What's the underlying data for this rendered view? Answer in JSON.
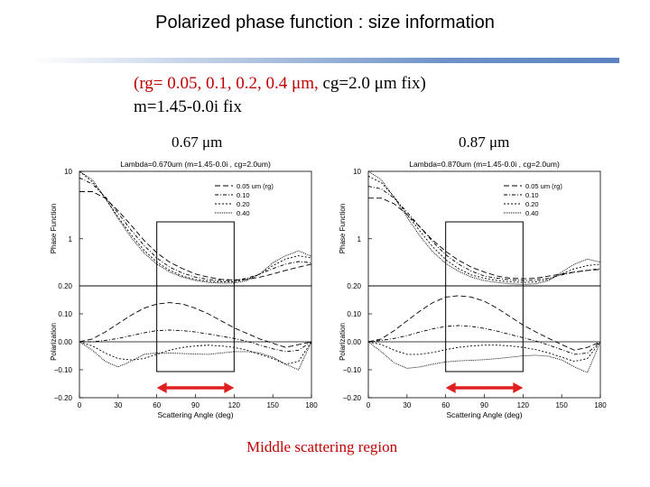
{
  "slide": {
    "title": "Polarized phase function : size information",
    "subtitle_line1_red": "(rg= 0.05, 0.1, 0.2, 0.4 μm,",
    "subtitle_line1_black": " cg=2.0 μm fix)",
    "subtitle_line2": "m=1.45-0.0i fix",
    "wavelength_left": "0.67 μm",
    "wavelength_right": "0.87 μm",
    "footer": "Middle scattering region",
    "accent_color": "#5b83c0",
    "arrow_color": "#e02020"
  },
  "chart_data": [
    {
      "type": "line",
      "title": "Lambda=0.670um (m=1.45-0.0i , cg=2.0um)",
      "xlabel": "Scattering Angle (deg)",
      "xlim": [
        0,
        180
      ],
      "xticks": [
        "0",
        "30",
        "60",
        "90",
        "120",
        "150",
        "180"
      ],
      "legend_title": "(rg)",
      "legend_position": "top-right",
      "highlight_x": [
        60,
        120
      ],
      "panels": [
        {
          "name": "phase",
          "ylabel": "Phase Function",
          "scale": "log",
          "ylim": [
            0.2,
            10
          ],
          "yticks": [
            "10",
            "1",
            "0.20"
          ],
          "series": [
            {
              "name": "0.05 um",
              "x": [
                0,
                10,
                20,
                30,
                40,
                50,
                60,
                70,
                80,
                90,
                100,
                110,
                120,
                130,
                140,
                150,
                160,
                170,
                180
              ],
              "values": [
                5.0,
                5.0,
                4.0,
                2.6,
                1.6,
                0.95,
                0.62,
                0.45,
                0.36,
                0.3,
                0.27,
                0.25,
                0.245,
                0.25,
                0.27,
                0.3,
                0.34,
                0.38,
                0.42
              ]
            },
            {
              "name": "0.10",
              "x": [
                0,
                10,
                20,
                30,
                40,
                50,
                60,
                70,
                80,
                90,
                100,
                110,
                120,
                130,
                140,
                150,
                160,
                170,
                180
              ],
              "values": [
                8.0,
                6.5,
                4.2,
                2.4,
                1.35,
                0.8,
                0.52,
                0.38,
                0.31,
                0.27,
                0.25,
                0.24,
                0.24,
                0.26,
                0.3,
                0.36,
                0.42,
                0.46,
                0.44
              ]
            },
            {
              "name": "0.20",
              "x": [
                0,
                10,
                20,
                30,
                40,
                50,
                60,
                70,
                80,
                90,
                100,
                110,
                120,
                130,
                140,
                150,
                160,
                170,
                180
              ],
              "values": [
                10.0,
                7.0,
                4.0,
                2.1,
                1.15,
                0.68,
                0.45,
                0.34,
                0.28,
                0.25,
                0.235,
                0.23,
                0.23,
                0.25,
                0.3,
                0.4,
                0.5,
                0.56,
                0.52
              ]
            },
            {
              "name": "0.40",
              "x": [
                0,
                10,
                20,
                30,
                40,
                50,
                60,
                70,
                80,
                90,
                100,
                110,
                120,
                130,
                140,
                150,
                160,
                170,
                180
              ],
              "values": [
                10.0,
                7.5,
                4.0,
                2.0,
                1.05,
                0.62,
                0.42,
                0.32,
                0.27,
                0.24,
                0.225,
                0.22,
                0.22,
                0.24,
                0.3,
                0.44,
                0.56,
                0.66,
                0.55
              ]
            }
          ]
        },
        {
          "name": "polarization",
          "ylabel": "Polarization",
          "scale": "linear",
          "ylim": [
            -0.2,
            0.2
          ],
          "yticks": [
            "0.10",
            "0.00",
            "−0.10",
            "−0.20"
          ],
          "series": [
            {
              "name": "0.05 um",
              "x": [
                0,
                10,
                20,
                30,
                40,
                50,
                60,
                70,
                80,
                90,
                100,
                110,
                120,
                130,
                140,
                150,
                160,
                170,
                180
              ],
              "values": [
                0.0,
                0.01,
                0.035,
                0.065,
                0.095,
                0.12,
                0.135,
                0.14,
                0.135,
                0.12,
                0.1,
                0.075,
                0.05,
                0.03,
                0.01,
                -0.005,
                -0.02,
                -0.01,
                0.0
              ]
            },
            {
              "name": "0.10",
              "x": [
                0,
                10,
                20,
                30,
                40,
                50,
                60,
                70,
                80,
                90,
                100,
                110,
                120,
                130,
                140,
                150,
                160,
                170,
                180
              ],
              "values": [
                0.0,
                0.0,
                0.005,
                0.012,
                0.022,
                0.032,
                0.04,
                0.042,
                0.04,
                0.035,
                0.028,
                0.02,
                0.012,
                0.002,
                -0.012,
                -0.025,
                -0.035,
                -0.03,
                0.0
              ]
            },
            {
              "name": "0.20",
              "x": [
                0,
                10,
                20,
                30,
                40,
                50,
                60,
                70,
                80,
                90,
                100,
                110,
                120,
                130,
                140,
                150,
                160,
                170,
                180
              ],
              "values": [
                0.0,
                -0.015,
                -0.04,
                -0.06,
                -0.065,
                -0.06,
                -0.045,
                -0.03,
                -0.02,
                -0.015,
                -0.012,
                -0.015,
                -0.02,
                -0.03,
                -0.045,
                -0.06,
                -0.08,
                -0.07,
                0.0
              ]
            },
            {
              "name": "0.40",
              "x": [
                0,
                10,
                20,
                30,
                40,
                50,
                60,
                70,
                80,
                90,
                100,
                110,
                120,
                130,
                140,
                150,
                160,
                170,
                180
              ],
              "values": [
                0.0,
                -0.03,
                -0.07,
                -0.09,
                -0.07,
                -0.045,
                -0.04,
                -0.04,
                -0.042,
                -0.044,
                -0.045,
                -0.04,
                -0.035,
                -0.035,
                -0.04,
                -0.055,
                -0.08,
                -0.1,
                0.0
              ]
            }
          ]
        }
      ]
    },
    {
      "type": "line",
      "title": "Lambda=0.870um (m=1.45-0.0i , cg=2.0um)",
      "xlabel": "Scattering Angle (deg)",
      "xlim": [
        0,
        180
      ],
      "xticks": [
        "0",
        "30",
        "60",
        "90",
        "120",
        "150",
        "180"
      ],
      "legend_title": "(rg)",
      "legend_position": "top-right",
      "highlight_x": [
        60,
        120
      ],
      "panels": [
        {
          "name": "phase",
          "ylabel": "Phase Function",
          "scale": "log",
          "ylim": [
            0.2,
            10
          ],
          "yticks": [
            "10",
            "1",
            "0.20"
          ],
          "series": [
            {
              "name": "0.05 um",
              "x": [
                0,
                10,
                20,
                30,
                40,
                50,
                60,
                70,
                80,
                90,
                100,
                110,
                120,
                130,
                140,
                150,
                160,
                170,
                180
              ],
              "values": [
                4.0,
                4.0,
                3.3,
                2.3,
                1.5,
                0.95,
                0.65,
                0.48,
                0.38,
                0.32,
                0.28,
                0.26,
                0.255,
                0.26,
                0.28,
                0.3,
                0.32,
                0.34,
                0.35
              ]
            },
            {
              "name": "0.10",
              "x": [
                0,
                10,
                20,
                30,
                40,
                50,
                60,
                70,
                80,
                90,
                100,
                110,
                120,
                130,
                140,
                150,
                160,
                170,
                180
              ],
              "values": [
                6.0,
                5.5,
                4.0,
                2.5,
                1.5,
                0.9,
                0.58,
                0.42,
                0.33,
                0.28,
                0.26,
                0.245,
                0.24,
                0.245,
                0.26,
                0.29,
                0.32,
                0.34,
                0.36
              ]
            },
            {
              "name": "0.20",
              "x": [
                0,
                10,
                20,
                30,
                40,
                50,
                60,
                70,
                80,
                90,
                100,
                110,
                120,
                130,
                140,
                150,
                160,
                170,
                180
              ],
              "values": [
                8.5,
                6.8,
                4.2,
                2.3,
                1.3,
                0.76,
                0.49,
                0.36,
                0.29,
                0.26,
                0.24,
                0.23,
                0.225,
                0.23,
                0.25,
                0.3,
                0.36,
                0.4,
                0.42
              ]
            },
            {
              "name": "0.40",
              "x": [
                0,
                10,
                20,
                30,
                40,
                50,
                60,
                70,
                80,
                90,
                100,
                110,
                120,
                130,
                140,
                150,
                160,
                170,
                180
              ],
              "values": [
                10.0,
                7.5,
                4.1,
                2.1,
                1.1,
                0.64,
                0.43,
                0.33,
                0.27,
                0.24,
                0.225,
                0.215,
                0.21,
                0.215,
                0.24,
                0.32,
                0.42,
                0.5,
                0.45
              ]
            }
          ]
        },
        {
          "name": "polarization",
          "ylabel": "Polarization",
          "scale": "linear",
          "ylim": [
            -0.2,
            0.2
          ],
          "yticks": [
            "0.10",
            "0.00",
            "−0.10",
            "−0.20"
          ],
          "series": [
            {
              "name": "0.05 um",
              "x": [
                0,
                10,
                20,
                30,
                40,
                50,
                60,
                70,
                80,
                90,
                100,
                110,
                120,
                130,
                140,
                150,
                160,
                170,
                180
              ],
              "values": [
                0.0,
                0.01,
                0.04,
                0.075,
                0.11,
                0.14,
                0.16,
                0.165,
                0.16,
                0.145,
                0.12,
                0.09,
                0.06,
                0.035,
                0.012,
                -0.01,
                -0.03,
                -0.02,
                0.0
              ]
            },
            {
              "name": "0.10",
              "x": [
                0,
                10,
                20,
                30,
                40,
                50,
                60,
                70,
                80,
                90,
                100,
                110,
                120,
                130,
                140,
                150,
                160,
                170,
                180
              ],
              "values": [
                0.0,
                0.005,
                0.012,
                0.022,
                0.035,
                0.046,
                0.055,
                0.058,
                0.055,
                0.048,
                0.038,
                0.026,
                0.015,
                0.003,
                -0.012,
                -0.028,
                -0.045,
                -0.04,
                0.0
              ]
            },
            {
              "name": "0.20",
              "x": [
                0,
                10,
                20,
                30,
                40,
                50,
                60,
                70,
                80,
                90,
                100,
                110,
                120,
                130,
                140,
                150,
                160,
                170,
                180
              ],
              "values": [
                0.0,
                -0.01,
                -0.03,
                -0.045,
                -0.045,
                -0.038,
                -0.028,
                -0.02,
                -0.015,
                -0.012,
                -0.012,
                -0.015,
                -0.02,
                -0.028,
                -0.04,
                -0.055,
                -0.07,
                -0.06,
                0.0
              ]
            },
            {
              "name": "0.40",
              "x": [
                0,
                10,
                20,
                30,
                40,
                50,
                60,
                70,
                80,
                90,
                100,
                110,
                120,
                130,
                140,
                150,
                160,
                170,
                180
              ],
              "values": [
                0.0,
                -0.035,
                -0.075,
                -0.095,
                -0.09,
                -0.08,
                -0.072,
                -0.068,
                -0.066,
                -0.064,
                -0.06,
                -0.055,
                -0.05,
                -0.048,
                -0.052,
                -0.065,
                -0.09,
                -0.11,
                0.0
              ]
            }
          ]
        }
      ]
    }
  ]
}
